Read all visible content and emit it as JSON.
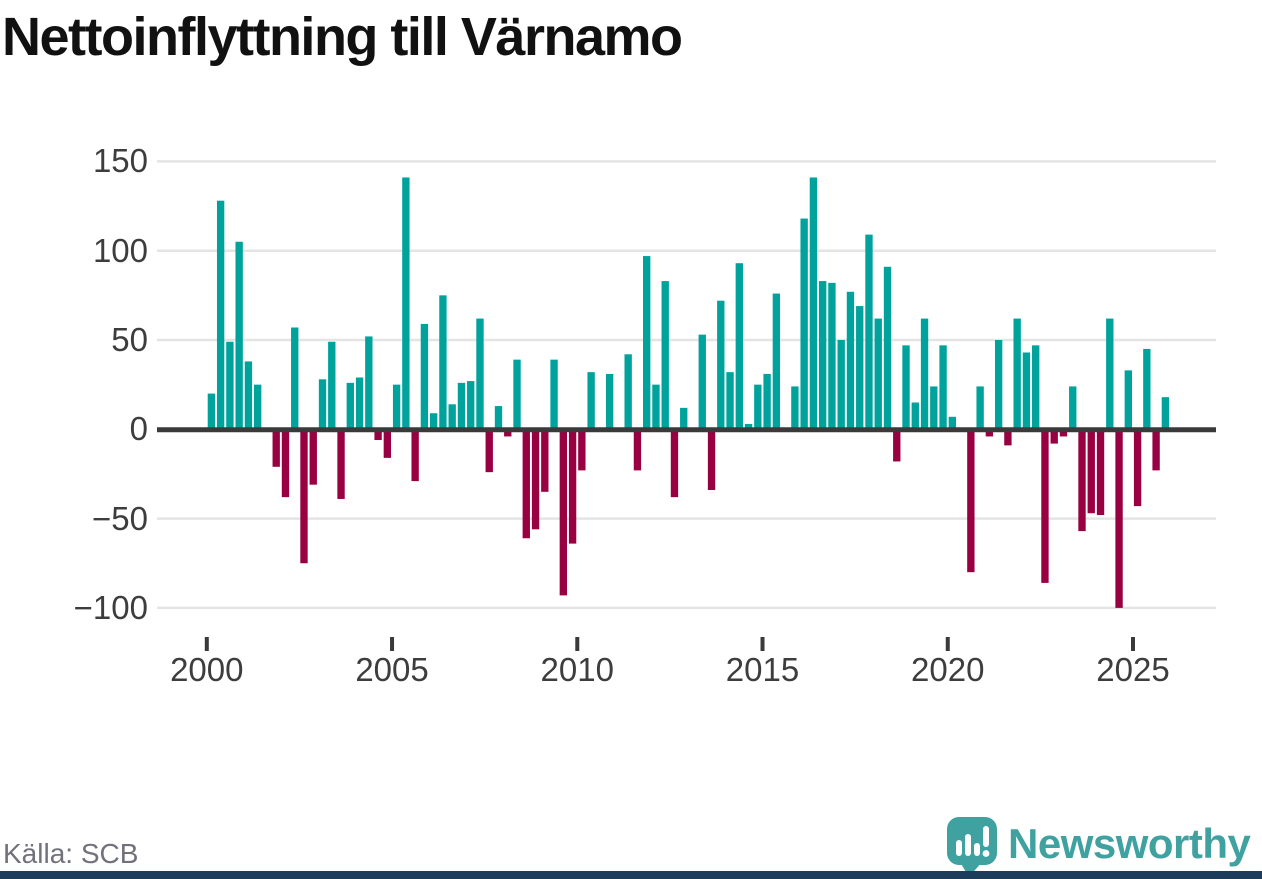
{
  "title": "Nettoinflyttning till Värnamo",
  "source": "Källa: SCB",
  "logo": {
    "text": "Newsworthy"
  },
  "colors": {
    "positive": "#00a29c",
    "negative": "#990042",
    "grid": "#e4e4e4",
    "zero_axis": "#3a3a3a",
    "tick": "#3a3a3a",
    "tick_label": "#3d3d3d",
    "title": "#111111",
    "source": "#71717c",
    "logo": "#3fa2a1",
    "footer_bar": "#1d3c5b"
  },
  "chart_data": {
    "type": "bar",
    "title": "Nettoinflyttning till Värnamo",
    "xlabel": "",
    "ylabel": "",
    "x_unit": "quarter",
    "grid": "horizontal",
    "legend": "none",
    "yticks": [
      150,
      100,
      50,
      0,
      -50,
      -100
    ],
    "xticks": [
      2000,
      2005,
      2010,
      2015,
      2020,
      2025
    ],
    "ylim": [
      -110,
      155
    ],
    "categories": [
      "2000 Q1",
      "2000 Q2",
      "2000 Q3",
      "2000 Q4",
      "2001 Q1",
      "2001 Q2",
      "2001 Q3",
      "2001 Q4",
      "2002 Q1",
      "2002 Q2",
      "2002 Q3",
      "2002 Q4",
      "2003 Q1",
      "2003 Q2",
      "2003 Q3",
      "2003 Q4",
      "2004 Q1",
      "2004 Q2",
      "2004 Q3",
      "2004 Q4",
      "2005 Q1",
      "2005 Q2",
      "2005 Q3",
      "2005 Q4",
      "2006 Q1",
      "2006 Q2",
      "2006 Q3",
      "2006 Q4",
      "2007 Q1",
      "2007 Q2",
      "2007 Q3",
      "2007 Q4",
      "2008 Q1",
      "2008 Q2",
      "2008 Q3",
      "2008 Q4",
      "2009 Q1",
      "2009 Q2",
      "2009 Q3",
      "2009 Q4",
      "2010 Q1",
      "2010 Q2",
      "2010 Q3",
      "2010 Q4",
      "2011 Q1",
      "2011 Q2",
      "2011 Q3",
      "2011 Q4",
      "2012 Q1",
      "2012 Q2",
      "2012 Q3",
      "2012 Q4",
      "2013 Q1",
      "2013 Q2",
      "2013 Q3",
      "2013 Q4",
      "2014 Q1",
      "2014 Q2",
      "2014 Q3",
      "2014 Q4",
      "2015 Q1",
      "2015 Q2",
      "2015 Q3",
      "2015 Q4",
      "2016 Q1",
      "2016 Q2",
      "2016 Q3",
      "2016 Q4",
      "2017 Q1",
      "2017 Q2",
      "2017 Q3",
      "2017 Q4",
      "2018 Q1",
      "2018 Q2",
      "2018 Q3",
      "2018 Q4",
      "2019 Q1",
      "2019 Q2",
      "2019 Q3",
      "2019 Q4",
      "2020 Q1",
      "2020 Q2",
      "2020 Q3",
      "2020 Q4",
      "2021 Q1",
      "2021 Q2",
      "2021 Q3",
      "2021 Q4",
      "2022 Q1",
      "2022 Q2",
      "2022 Q3",
      "2022 Q4",
      "2023 Q1",
      "2023 Q2",
      "2023 Q3",
      "2023 Q4",
      "2024 Q1",
      "2024 Q2",
      "2024 Q3",
      "2024 Q4",
      "2025 Q1",
      "2025 Q2",
      "2025 Q3",
      "2025 Q4"
    ],
    "values": [
      20,
      128,
      49,
      105,
      38,
      25,
      0,
      -21,
      -38,
      57,
      -75,
      -31,
      28,
      49,
      -39,
      26,
      29,
      52,
      -6,
      -16,
      25,
      141,
      -29,
      59,
      9,
      75,
      14,
      26,
      27,
      62,
      -24,
      13,
      -4,
      39,
      -61,
      -56,
      -35,
      39,
      -93,
      -64,
      -23,
      32,
      0,
      31,
      0,
      42,
      -23,
      97,
      25,
      83,
      -38,
      12,
      0,
      53,
      -34,
      72,
      32,
      93,
      3,
      25,
      31,
      76,
      0,
      24,
      118,
      141,
      83,
      82,
      50,
      77,
      69,
      109,
      62,
      91,
      -18,
      47,
      15,
      62,
      24,
      47,
      7,
      0,
      -80,
      24,
      -4,
      50,
      -9,
      62,
      43,
      47,
      -86,
      -8,
      -4,
      24,
      -57,
      -47,
      -48,
      62,
      -100,
      33,
      -43,
      45,
      -23,
      18
    ]
  }
}
